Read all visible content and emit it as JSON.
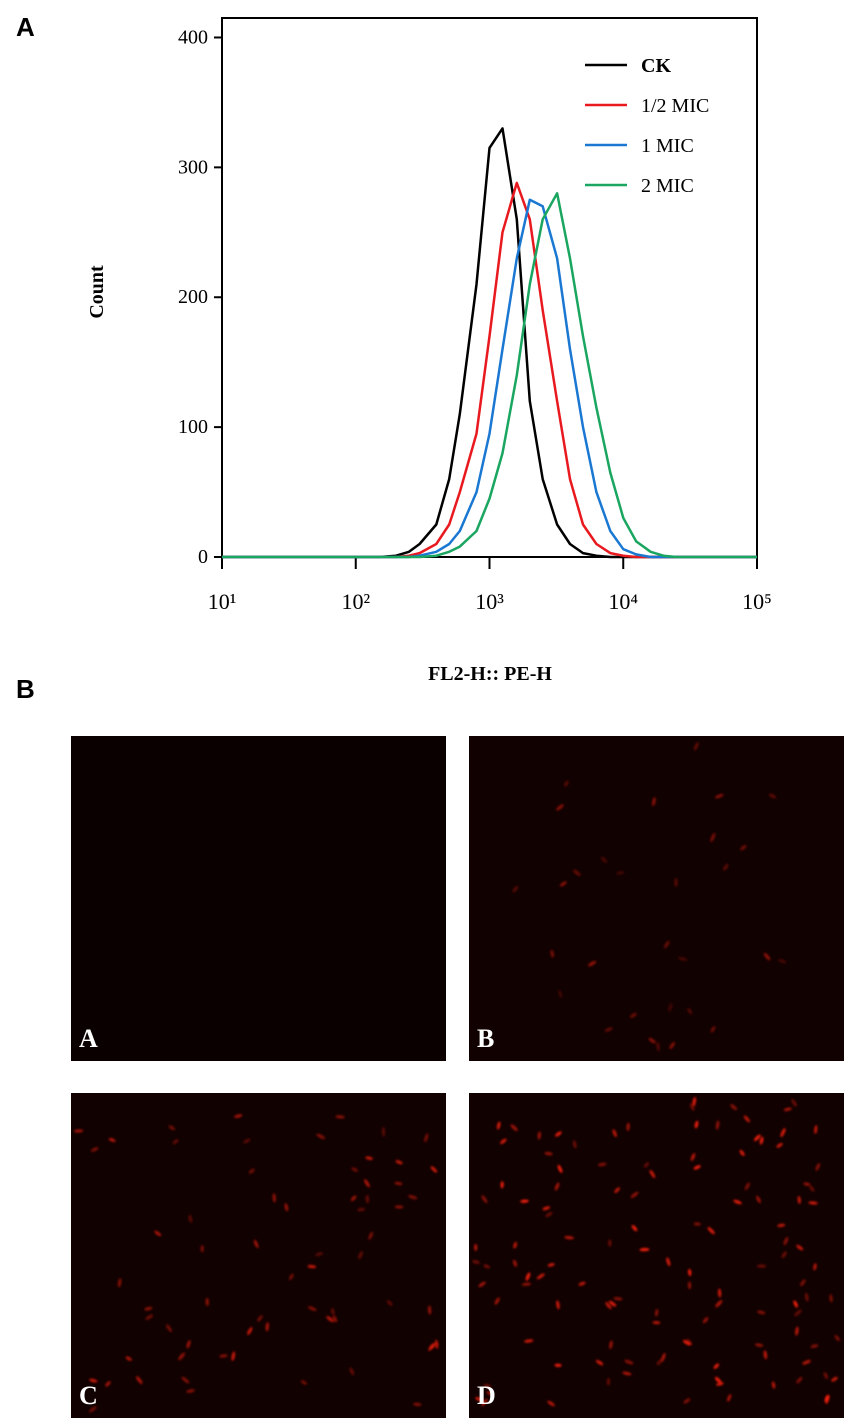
{
  "figure_labels": [
    "A",
    "B"
  ],
  "chart_data": {
    "type": "line",
    "xlabel": "FL2-H:: PE-H",
    "ylabel": "Count",
    "xscale": "log",
    "xlim": [
      10,
      100000
    ],
    "xticks": [
      {
        "value": 10,
        "label": "10¹"
      },
      {
        "value": 100,
        "label": "10²"
      },
      {
        "value": 1000,
        "label": "10³"
      },
      {
        "value": 10000,
        "label": "10⁴"
      },
      {
        "value": 100000,
        "label": "10⁵"
      }
    ],
    "ylim": [
      0,
      415
    ],
    "yticks": [
      0,
      100,
      200,
      300,
      400
    ],
    "legend": "upper right",
    "x": [
      10,
      100,
      150,
      200,
      250,
      300,
      400,
      500,
      600,
      800,
      1000,
      1250,
      1600,
      2000,
      2500,
      3200,
      4000,
      5000,
      6300,
      8000,
      10000,
      12500,
      16000,
      20000,
      25000,
      100000
    ],
    "series": [
      {
        "name": "CK",
        "color": "#000000",
        "values": [
          0,
          0,
          0,
          1,
          4,
          10,
          25,
          60,
          110,
          210,
          315,
          330,
          260,
          120,
          60,
          25,
          10,
          3,
          1,
          0,
          0,
          0,
          0,
          0,
          0,
          0
        ]
      },
      {
        "name": "1/2 MIC",
        "color": "#e8191f",
        "values": [
          0,
          0,
          0,
          0,
          1,
          3,
          10,
          25,
          50,
          95,
          170,
          250,
          288,
          260,
          190,
          120,
          60,
          25,
          10,
          3,
          1,
          0,
          0,
          0,
          0,
          0
        ]
      },
      {
        "name": "1 MIC",
        "color": "#1a78d2",
        "values": [
          0,
          0,
          0,
          0,
          0,
          1,
          4,
          10,
          20,
          50,
          95,
          160,
          230,
          275,
          270,
          230,
          160,
          100,
          50,
          20,
          6,
          2,
          0,
          0,
          0,
          0
        ]
      },
      {
        "name": "2 MIC",
        "color": "#1aa660",
        "values": [
          0,
          0,
          0,
          0,
          0,
          0,
          1,
          4,
          8,
          20,
          45,
          80,
          140,
          210,
          260,
          280,
          230,
          170,
          115,
          65,
          30,
          12,
          4,
          1,
          0,
          0
        ]
      }
    ]
  },
  "micrographs": [
    {
      "label": "A"
    },
    {
      "label": "B"
    },
    {
      "label": "C"
    },
    {
      "label": "D"
    }
  ]
}
